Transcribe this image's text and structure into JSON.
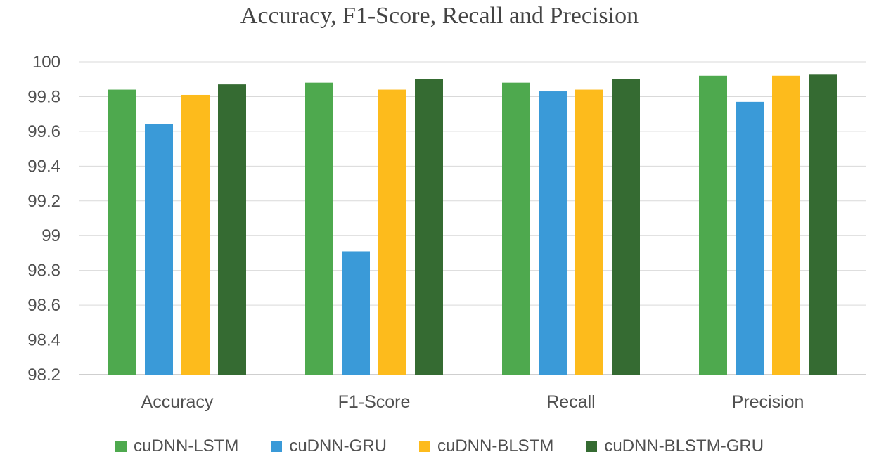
{
  "chart_data": {
    "type": "bar",
    "title": "Accuracy, F1-Score, Recall and Precision",
    "xlabel": "",
    "ylabel": "",
    "categories": [
      "Accuracy",
      "F1-Score",
      "Recall",
      "Precision"
    ],
    "series": [
      {
        "name": "cuDNN-LSTM",
        "color": "#4ea94e",
        "values": [
          99.84,
          99.88,
          99.88,
          99.92
        ]
      },
      {
        "name": "cuDNN-GRU",
        "color": "#3a9ad8",
        "values": [
          99.64,
          98.91,
          99.83,
          99.77
        ]
      },
      {
        "name": "cuDNN-BLSTM",
        "color": "#fdbb1c",
        "values": [
          99.81,
          99.84,
          99.84,
          99.92
        ]
      },
      {
        "name": "cuDNN-BLSTM-GRU",
        "color": "#356b32",
        "values": [
          99.87,
          99.9,
          99.9,
          99.93
        ]
      }
    ],
    "ylim": [
      98.2,
      100
    ],
    "yticks": [
      "98.2",
      "98.4",
      "98.6",
      "98.8",
      "99",
      "99.2",
      "99.4",
      "99.6",
      "99.8",
      "100"
    ],
    "grid": true,
    "legend": "bottom"
  }
}
